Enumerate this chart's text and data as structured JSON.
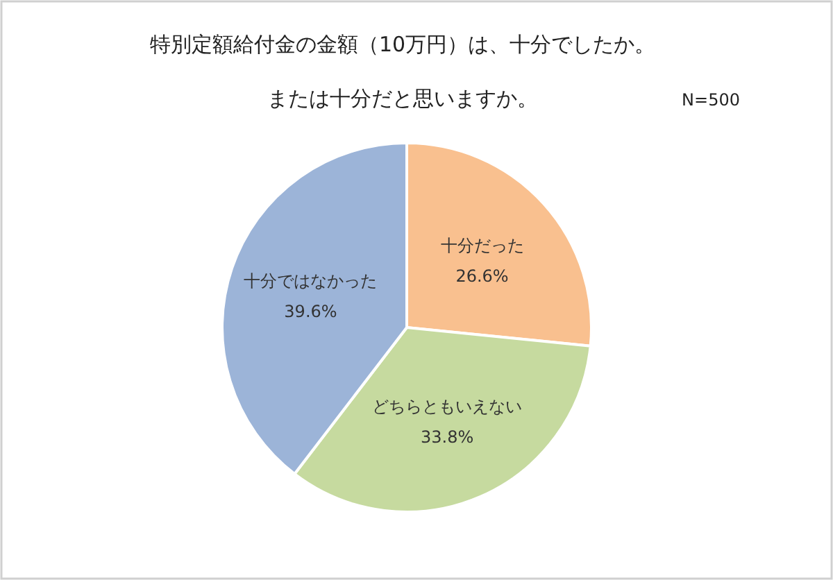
{
  "chart_data": {
    "type": "pie",
    "title": "特別定額給付金の金額（10万円）は、十分でしたか。",
    "subtitle": "または十分だと思いますか。",
    "annotations": [
      "N=500"
    ],
    "categories": [
      "十分だった",
      "どちらともいえない",
      "十分ではなかった"
    ],
    "values": [
      26.6,
      33.8,
      39.6
    ],
    "value_labels": [
      "26.6%",
      "33.8%",
      "39.6%"
    ],
    "colors": [
      "#f9c08f",
      "#c6da9f",
      "#9cb4d8"
    ],
    "legend": false
  }
}
